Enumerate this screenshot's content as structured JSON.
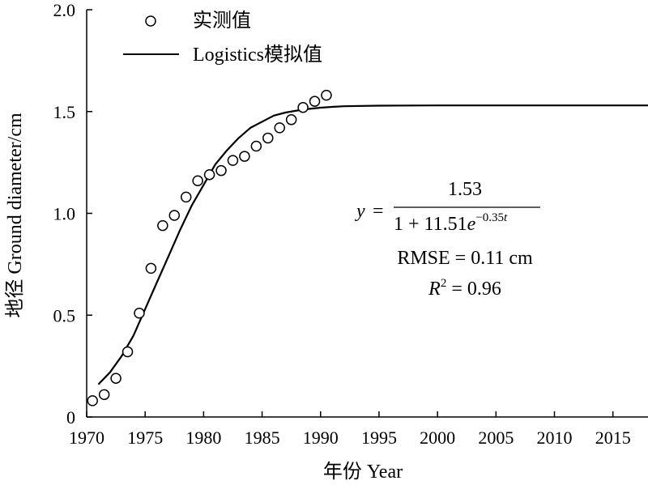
{
  "chart_data": {
    "type": "scatter+line",
    "xlabel": "年份 Year",
    "ylabel": "地径 Ground diameter/cm",
    "xlim": [
      1970,
      2018
    ],
    "ylim": [
      0,
      2.0
    ],
    "x_ticks": [
      "1970",
      "1975",
      "1980",
      "1985",
      "1990",
      "1995",
      "2000",
      "2005",
      "2010",
      "2015"
    ],
    "y_ticks": [
      "0",
      "0.5",
      "1.0",
      "1.5",
      "2.0"
    ],
    "legend": {
      "placement": "top-left",
      "items": [
        {
          "marker": "open-circle",
          "label": "实测值"
        },
        {
          "marker": "line",
          "label": "Logistics模拟值"
        }
      ]
    },
    "series": [
      {
        "name": "实测值",
        "kind": "scatter",
        "x": [
          1970.5,
          1971.5,
          1972.5,
          1973.5,
          1974.5,
          1975.5,
          1976.5,
          1977.5,
          1978.5,
          1979.5,
          1980.5,
          1981.5,
          1982.5,
          1983.5,
          1984.5,
          1985.5,
          1986.5,
          1987.5,
          1988.5,
          1989.5,
          1990.5
        ],
        "y": [
          0.08,
          0.11,
          0.19,
          0.32,
          0.51,
          0.73,
          0.94,
          0.99,
          1.08,
          1.16,
          1.19,
          1.21,
          1.26,
          1.28,
          1.33,
          1.37,
          1.42,
          1.46,
          1.52,
          1.55,
          1.58
        ]
      },
      {
        "name": "Logistics模拟值",
        "kind": "line",
        "x": [
          1971,
          1972,
          1973,
          1974,
          1975,
          1976,
          1977,
          1978,
          1979,
          1980,
          1981,
          1982,
          1983,
          1984,
          1985,
          1986,
          1987,
          1988,
          1989,
          1990,
          1991,
          1992,
          1995,
          2000,
          2005,
          2010,
          2015,
          2018
        ],
        "y": [
          0.16,
          0.22,
          0.3,
          0.4,
          0.53,
          0.66,
          0.79,
          0.92,
          1.04,
          1.14,
          1.24,
          1.31,
          1.37,
          1.42,
          1.45,
          1.48,
          1.495,
          1.505,
          1.513,
          1.519,
          1.523,
          1.526,
          1.529,
          1.53,
          1.53,
          1.53,
          1.53,
          1.53
        ]
      }
    ],
    "annotation": {
      "eq_y": "y",
      "eq_equals": "=",
      "eq_numerator": "1.53",
      "eq_denominator_base": "1 + 11.51",
      "eq_denominator_e": "e",
      "eq_exponent": "−0.35",
      "eq_exponent_t": "t",
      "rmse": "RMSE = 0.11 cm",
      "r2_r": "R",
      "r2_sup": "2",
      "r2_value": " = 0.96"
    }
  }
}
